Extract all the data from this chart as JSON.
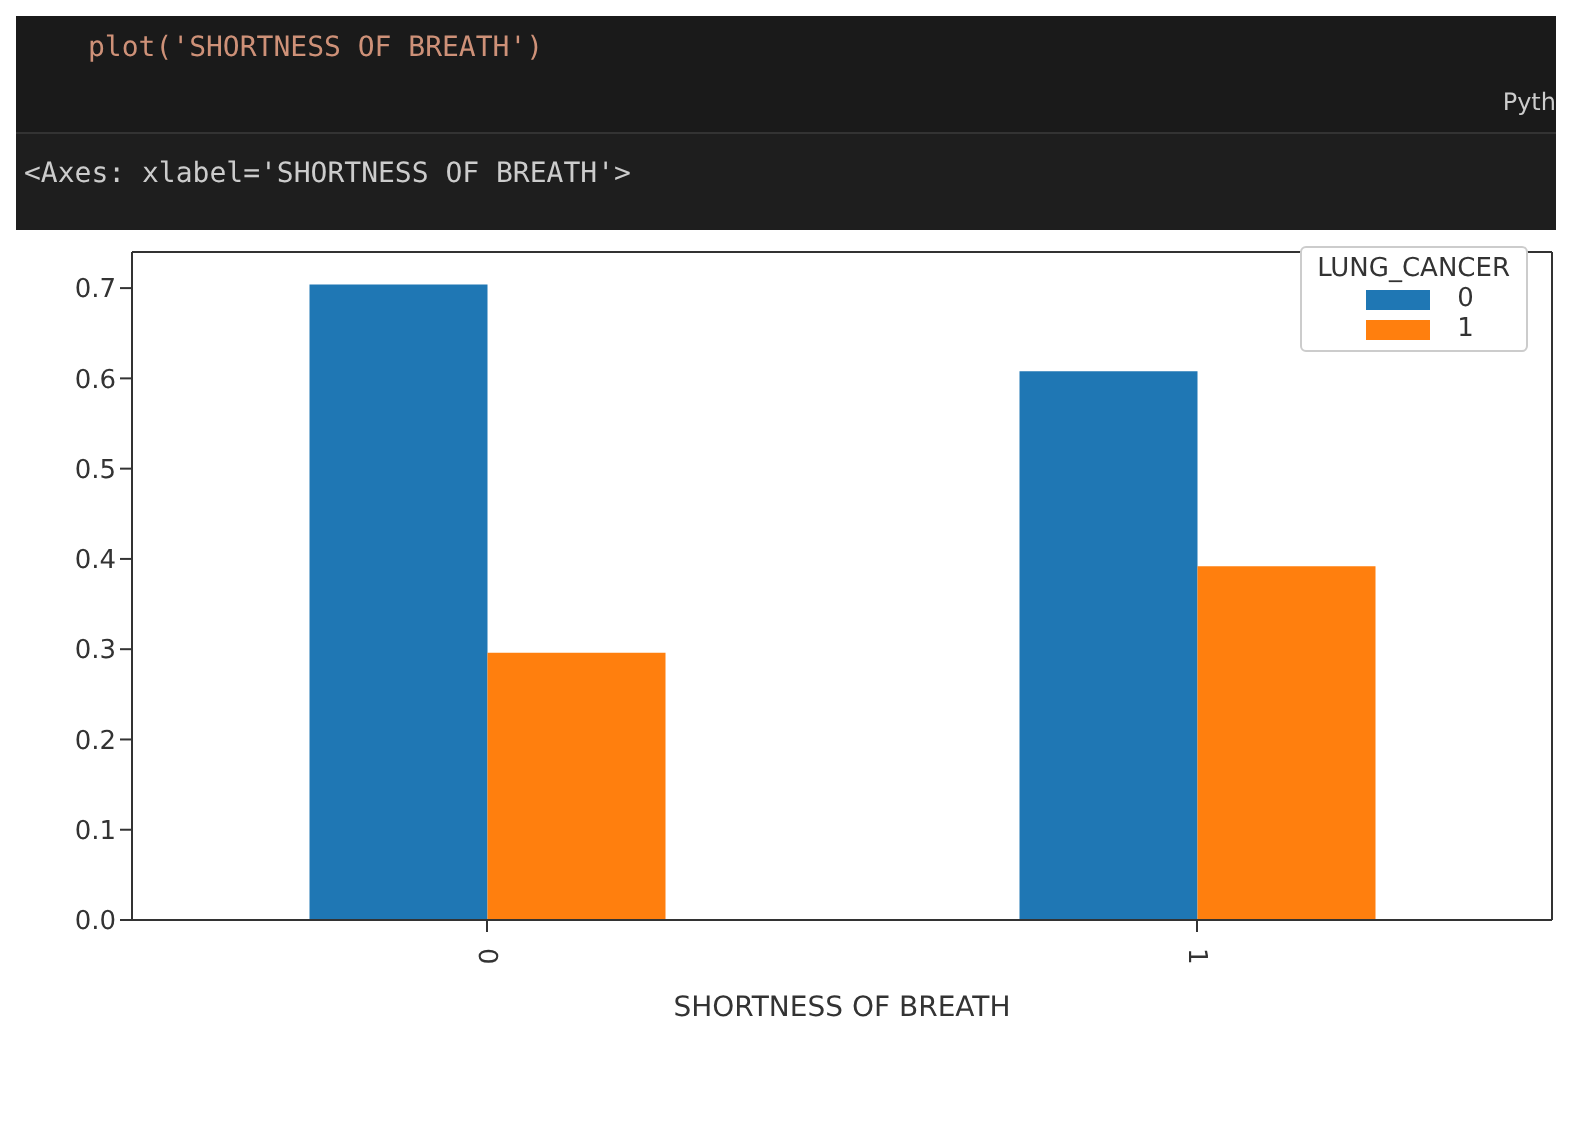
{
  "chart_data": {
    "type": "bar",
    "xlabel": "SHORTNESS OF BREATH",
    "legend_title": "LUNG_CANCER",
    "annotations": [
      "plot('SHORTNESS OF BREATH')",
      "Pyth",
      "<Axes: xlabel='SHORTNESS OF BREATH'>"
    ],
    "categories": [
      "0",
      "1"
    ],
    "series": [
      {
        "name": "0",
        "color": "#1f77b4",
        "values": [
          0.704,
          0.608
        ]
      },
      {
        "name": "1",
        "color": "#ff7f0e",
        "values": [
          0.296,
          0.392
        ]
      }
    ],
    "ylim": [
      0,
      0.74
    ],
    "yticks": [
      {
        "value": 0,
        "label": "0.0"
      },
      0.1,
      0.2,
      0.3,
      0.4,
      0.5,
      0.6,
      0.7
    ],
    "grid": false,
    "legend": "top right"
  }
}
